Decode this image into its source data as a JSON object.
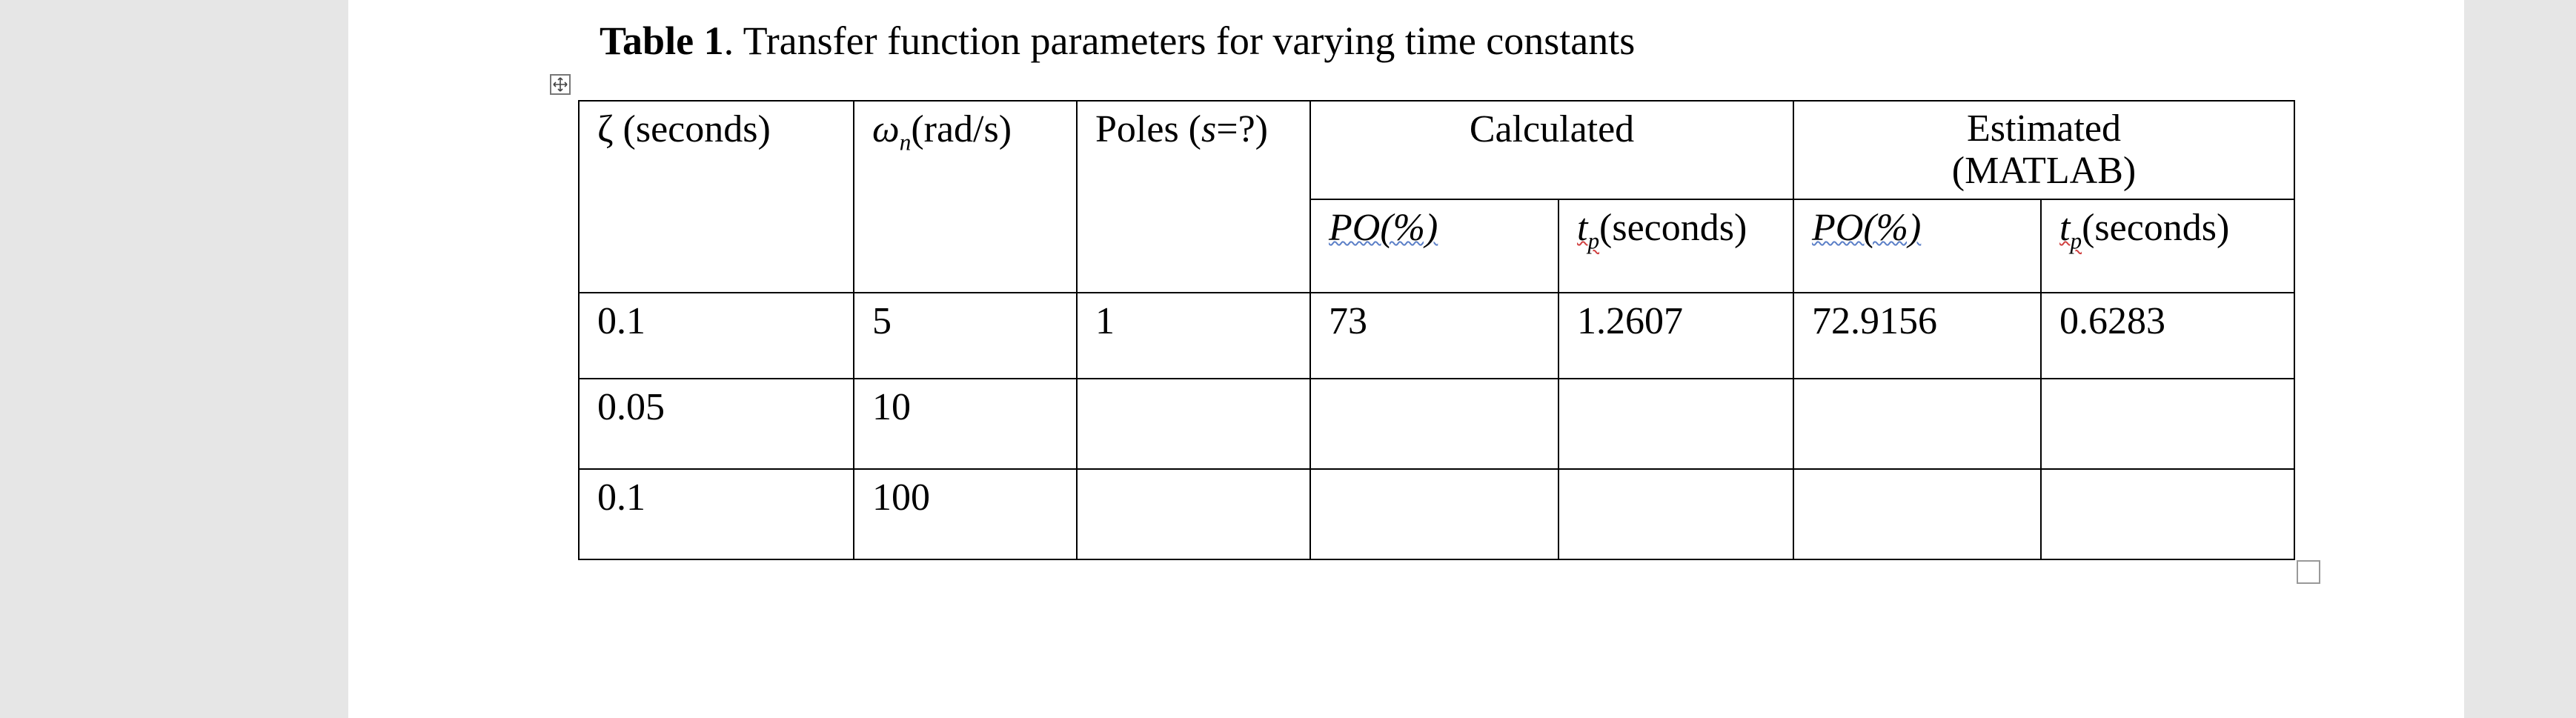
{
  "title": {
    "label": "Table 1",
    "text": ". Transfer function parameters for varying time constants"
  },
  "table": {
    "header": {
      "zeta": {
        "symbol": "ζ",
        "unit": "(seconds)"
      },
      "omega": {
        "symbol": "ω",
        "sub": "n",
        "unit": "(rad/s)"
      },
      "poles": {
        "text": "Poles (",
        "var": "s",
        "rest": "=?)"
      },
      "groups": [
        "Calculated",
        "Estimated (MATLAB)"
      ],
      "subheaders": [
        {
          "text": "PO(%)"
        },
        {
          "symbol": "t",
          "sub": "p",
          "unit": "(seconds)"
        },
        {
          "text": "PO(%)"
        },
        {
          "symbol": "t",
          "sub": "p",
          "unit": "(seconds)"
        }
      ]
    },
    "rows": [
      [
        "0.1",
        "5",
        "1",
        "73",
        "1.2607",
        "72.9156",
        "0.6283"
      ],
      [
        "0.05",
        "10"
      ],
      [
        "0.1",
        "100"
      ]
    ]
  }
}
